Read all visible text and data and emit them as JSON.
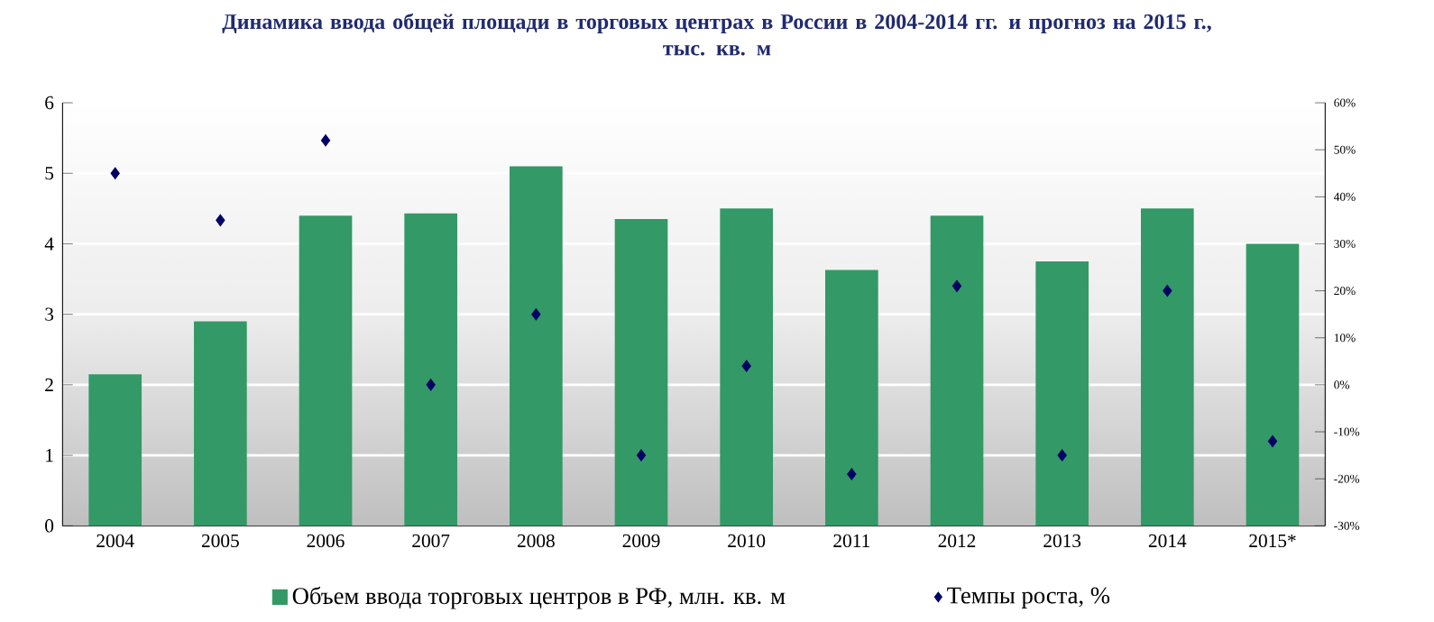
{
  "chart_data": {
    "type": "bar",
    "title": "Динамика ввода общей площади в торговых центрах в России в 2004-2014 гг. и прогноз на 2015 г.,\nтыс. кв. м",
    "categories": [
      "2004",
      "2005",
      "2006",
      "2007",
      "2008",
      "2009",
      "2010",
      "2011",
      "2012",
      "2013",
      "2014",
      "2015*"
    ],
    "series": [
      {
        "name": "Объем ввода торговых центров в РФ, млн. кв. м",
        "color": "#339966",
        "values": [
          2.15,
          2.9,
          4.4,
          4.43,
          5.1,
          4.35,
          4.5,
          3.63,
          4.4,
          3.75,
          4.5,
          4.0
        ]
      },
      {
        "type": "scatter",
        "axis": "y2",
        "marker": "diamond",
        "name": "Темпы роста, %",
        "color": "#000066",
        "values": [
          45,
          35,
          52,
          0,
          15,
          -15,
          4,
          -19,
          21,
          -15,
          20,
          -12
        ]
      }
    ],
    "ylim": [
      0,
      6
    ],
    "yticks": [
      0,
      1,
      2,
      3,
      4,
      5,
      6
    ],
    "y2lim": [
      -30,
      60
    ],
    "y2ticks": [
      {
        "value": -30,
        "label": "-30%"
      },
      {
        "value": -20,
        "label": "-20%"
      },
      {
        "value": -10,
        "label": "-10%"
      },
      {
        "value": 0,
        "label": "0%"
      },
      {
        "value": 10,
        "label": "10%"
      },
      {
        "value": 20,
        "label": "20%"
      },
      {
        "value": 30,
        "label": "30%"
      },
      {
        "value": 40,
        "label": "40%"
      },
      {
        "value": 50,
        "label": "50%"
      },
      {
        "value": 60,
        "label": "60%"
      }
    ],
    "grid": "y",
    "legend": "bottom"
  }
}
